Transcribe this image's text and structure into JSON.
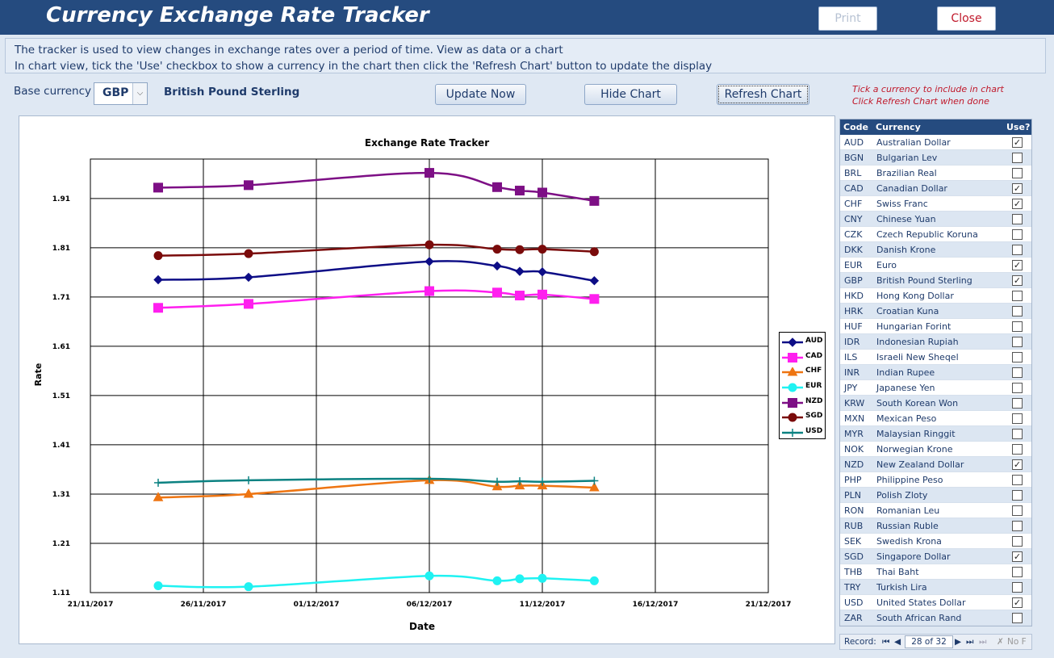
{
  "app": {
    "title": "Currency Exchange Rate Tracker",
    "print_label": "Print",
    "close_label": "Close"
  },
  "info": {
    "line1": "The tracker is used to view changes in exchange rates over a period of time. View as data or a chart",
    "line2": "In chart view, tick the 'Use' checkbox to show a currency in the chart then click the 'Refresh Chart' button to update the display"
  },
  "controls": {
    "base_label": "Base currency",
    "base_code": "GBP",
    "base_name": "British Pound Sterling",
    "update_label": "Update Now",
    "hide_label": "Hide Chart",
    "refresh_label": "Refresh  Chart",
    "hint_line1": "Tick a currency to include in chart",
    "hint_line2": "Click Refresh Chart when done"
  },
  "colors": {
    "header_bg": "#254b7f",
    "AUD": "#0d0d86",
    "CAD": "#ff1fef",
    "CHF": "#ee7512",
    "EUR": "#1ff2f2",
    "NZD": "#7d0f85",
    "SGD": "#7a0b0b",
    "USD": "#0c8282"
  },
  "chart_data": {
    "type": "line",
    "title": "Exchange Rate Tracker",
    "xlabel": "Date",
    "ylabel": "Rate",
    "x_tick_labels": [
      "21/11/2017",
      "26/11/2017",
      "01/12/2017",
      "06/12/2017",
      "11/12/2017",
      "16/12/2017",
      "21/12/2017"
    ],
    "x_range_days": [
      0,
      30
    ],
    "y_tick_labels": [
      "1.11",
      "1.21",
      "1.31",
      "1.41",
      "1.51",
      "1.61",
      "1.71",
      "1.81",
      "1.91"
    ],
    "ylim": [
      1.11,
      1.99
    ],
    "x_days": [
      3,
      7,
      15,
      18,
      19,
      20,
      22.3
    ],
    "series": [
      {
        "name": "AUD",
        "marker": "diamond",
        "values": [
          1.745,
          1.75,
          1.782,
          1.773,
          1.762,
          1.761,
          1.743
        ]
      },
      {
        "name": "CAD",
        "marker": "square",
        "values": [
          1.688,
          1.696,
          1.722,
          1.719,
          1.713,
          1.715,
          1.706
        ]
      },
      {
        "name": "CHF",
        "marker": "triangle",
        "values": [
          1.303,
          1.31,
          1.338,
          1.325,
          1.327,
          1.327,
          1.323
        ]
      },
      {
        "name": "EUR",
        "marker": "circle",
        "values": [
          1.124,
          1.122,
          1.144,
          1.134,
          1.138,
          1.139,
          1.134
        ]
      },
      {
        "name": "NZD",
        "marker": "square",
        "values": [
          1.932,
          1.937,
          1.962,
          1.933,
          1.926,
          1.922,
          1.905
        ]
      },
      {
        "name": "SGD",
        "marker": "circle",
        "values": [
          1.794,
          1.798,
          1.816,
          1.807,
          1.806,
          1.807,
          1.802
        ]
      },
      {
        "name": "USD",
        "marker": "plus",
        "values": [
          1.333,
          1.338,
          1.341,
          1.335,
          1.336,
          1.335,
          1.337
        ]
      }
    ]
  },
  "list": {
    "headers": {
      "code": "Code",
      "currency": "Currency",
      "use": "Use?"
    },
    "rows": [
      {
        "code": "AUD",
        "name": "Australian Dollar",
        "use": true
      },
      {
        "code": "BGN",
        "name": "Bulgarian Lev",
        "use": false
      },
      {
        "code": "BRL",
        "name": "Brazilian Real",
        "use": false
      },
      {
        "code": "CAD",
        "name": "Canadian Dollar",
        "use": true
      },
      {
        "code": "CHF",
        "name": "Swiss Franc",
        "use": true
      },
      {
        "code": "CNY",
        "name": "Chinese Yuan",
        "use": false
      },
      {
        "code": "CZK",
        "name": "Czech Republic Koruna",
        "use": false
      },
      {
        "code": "DKK",
        "name": "Danish Krone",
        "use": false
      },
      {
        "code": "EUR",
        "name": "Euro",
        "use": true
      },
      {
        "code": "GBP",
        "name": "British Pound Sterling",
        "use": true
      },
      {
        "code": "HKD",
        "name": "Hong Kong Dollar",
        "use": false
      },
      {
        "code": "HRK",
        "name": "Croatian Kuna",
        "use": false
      },
      {
        "code": "HUF",
        "name": "Hungarian Forint",
        "use": false
      },
      {
        "code": "IDR",
        "name": "Indonesian Rupiah",
        "use": false
      },
      {
        "code": "ILS",
        "name": "Israeli New Sheqel",
        "use": false
      },
      {
        "code": "INR",
        "name": "Indian Rupee",
        "use": false
      },
      {
        "code": "JPY",
        "name": "Japanese Yen",
        "use": false
      },
      {
        "code": "KRW",
        "name": "South Korean Won",
        "use": false
      },
      {
        "code": "MXN",
        "name": "Mexican Peso",
        "use": false
      },
      {
        "code": "MYR",
        "name": "Malaysian Ringgit",
        "use": false
      },
      {
        "code": "NOK",
        "name": "Norwegian Krone",
        "use": false
      },
      {
        "code": "NZD",
        "name": "New Zealand Dollar",
        "use": true
      },
      {
        "code": "PHP",
        "name": "Philippine Peso",
        "use": false
      },
      {
        "code": "PLN",
        "name": "Polish Zloty",
        "use": false
      },
      {
        "code": "RON",
        "name": "Romanian Leu",
        "use": false
      },
      {
        "code": "RUB",
        "name": "Russian Ruble",
        "use": false
      },
      {
        "code": "SEK",
        "name": "Swedish Krona",
        "use": false
      },
      {
        "code": "SGD",
        "name": "Singapore Dollar",
        "use": true
      },
      {
        "code": "THB",
        "name": "Thai Baht",
        "use": false
      },
      {
        "code": "TRY",
        "name": "Turkish Lira",
        "use": false
      },
      {
        "code": "USD",
        "name": "United States Dollar",
        "use": true
      },
      {
        "code": "ZAR",
        "name": "South African Rand",
        "use": false
      }
    ]
  },
  "record_nav": {
    "label": "Record:",
    "position": "28 of 32",
    "filter": "No F"
  }
}
